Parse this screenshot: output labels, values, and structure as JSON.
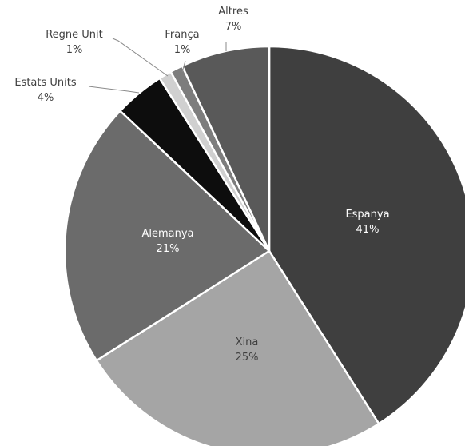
{
  "chart_data": {
    "type": "pie",
    "title": "",
    "slices": [
      {
        "label": "Espanya",
        "value": 41,
        "value_label": "41%",
        "color": "#3f3f3f",
        "label_color": "#ffffff"
      },
      {
        "label": "Xina",
        "value": 25,
        "value_label": "25%",
        "color": "#a5a5a5",
        "label_color": "#404040"
      },
      {
        "label": "Alemanya",
        "value": 21,
        "value_label": "21%",
        "color": "#6b6b6b",
        "label_color": "#ffffff"
      },
      {
        "label": "Estats Units",
        "value": 4,
        "value_label": "4%",
        "color": "#0d0d0d",
        "label_color": "#404040"
      },
      {
        "label": "Regne Unit",
        "value": 1,
        "value_label": "1%",
        "color": "#d0d0d0",
        "label_color": "#404040"
      },
      {
        "label": "França",
        "value": 1,
        "value_label": "1%",
        "color": "#7d7d7d",
        "label_color": "#404040"
      },
      {
        "label": "Altres",
        "value": 7,
        "value_label": "7%",
        "color": "#595959",
        "label_color": "#404040"
      }
    ]
  }
}
